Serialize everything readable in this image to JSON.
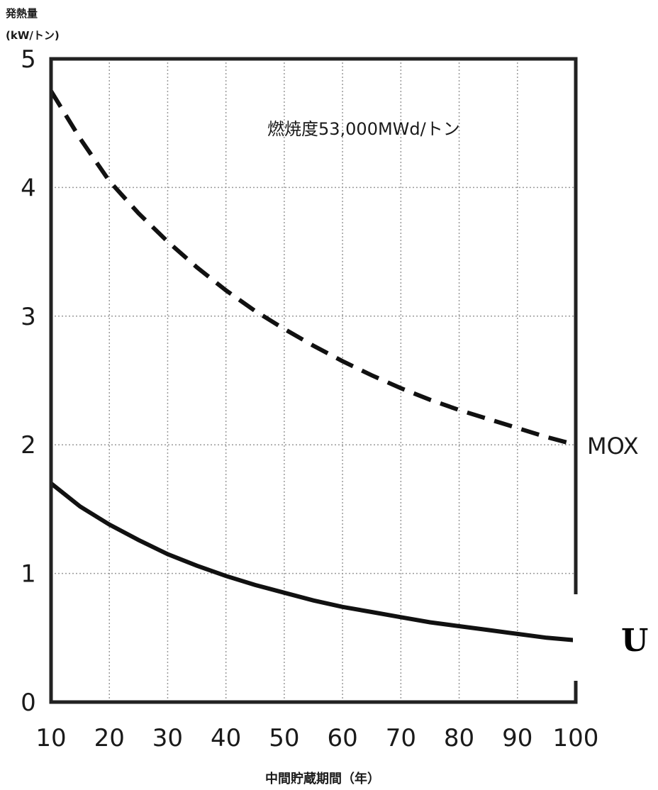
{
  "chart_data": {
    "type": "line",
    "title": "",
    "ylabel": "発熱量",
    "yunit": "(kW/トン)",
    "xlabel": "中間貯蔵期間（年）",
    "annotation": "燃焼度53,000MWd/トン",
    "xlim": [
      10,
      100
    ],
    "ylim": [
      0,
      5
    ],
    "xticks": [
      "10",
      "20",
      "30",
      "40",
      "50",
      "60",
      "70",
      "80",
      "90",
      "100"
    ],
    "yticks": [
      "0",
      "1",
      "2",
      "3",
      "4",
      "5"
    ],
    "grid": true,
    "series": [
      {
        "name": "MOX",
        "style": "dashed",
        "x": [
          10,
          15,
          20,
          25,
          30,
          35,
          40,
          45,
          50,
          55,
          60,
          65,
          70,
          75,
          80,
          85,
          90,
          95,
          100
        ],
        "y": [
          4.75,
          4.38,
          4.05,
          3.8,
          3.58,
          3.38,
          3.2,
          3.04,
          2.9,
          2.77,
          2.65,
          2.54,
          2.44,
          2.35,
          2.27,
          2.2,
          2.13,
          2.06,
          2.0
        ]
      },
      {
        "name": "U",
        "style": "solid",
        "x": [
          10,
          15,
          20,
          25,
          30,
          35,
          40,
          45,
          50,
          55,
          60,
          65,
          70,
          75,
          80,
          85,
          90,
          95,
          100
        ],
        "y": [
          1.7,
          1.52,
          1.38,
          1.26,
          1.15,
          1.06,
          0.98,
          0.91,
          0.85,
          0.79,
          0.74,
          0.7,
          0.66,
          0.62,
          0.59,
          0.56,
          0.53,
          0.5,
          0.48
        ]
      }
    ],
    "colors": {
      "line": "#111111",
      "grid": "#9a9a9a",
      "frame": "#222222"
    }
  }
}
